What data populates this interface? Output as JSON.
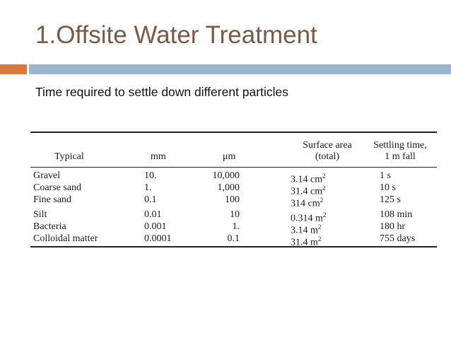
{
  "slide": {
    "title": "1.Offsite Water Treatment",
    "subtitle": "Time required to settle down different particles"
  },
  "colors": {
    "title": "#7a5a47",
    "accent_orange": "#d9793f",
    "accent_blue": "#9ab5cf"
  },
  "table": {
    "headers": {
      "typical": "Typical",
      "mm": "mm",
      "um": "μm",
      "surface_area_line1": "Surface area",
      "surface_area_line2": "(total)",
      "settling_line1": "Settling time,",
      "settling_line2": "1 m fall"
    },
    "rows": [
      {
        "typical": "Gravel",
        "mm": "10.",
        "um": "10,000",
        "area_num": "3.14 cm",
        "area_exp": "2",
        "time": "1 s"
      },
      {
        "typical": "Coarse sand",
        "mm": "1.",
        "um": "1,000",
        "area_num": "31.4 cm",
        "area_exp": "2",
        "time": "10 s"
      },
      {
        "typical": "Fine sand",
        "mm": "0.1",
        "um": "100",
        "area_num": "314 cm",
        "area_exp": "2",
        "time": "125 s"
      },
      {
        "typical": "Silt",
        "mm": "0.01",
        "um": "10",
        "area_num": "0.314 m",
        "area_exp": "2",
        "time": "108 min"
      },
      {
        "typical": "Bacteria",
        "mm": "0.001",
        "um": "1.",
        "area_num": "3.14 m",
        "area_exp": "2",
        "time": "180 hr"
      },
      {
        "typical": "Colloidal matter",
        "mm": "0.0001",
        "um": "0.1",
        "area_num": "31.4 m",
        "area_exp": "2",
        "time": "755 days"
      }
    ]
  }
}
